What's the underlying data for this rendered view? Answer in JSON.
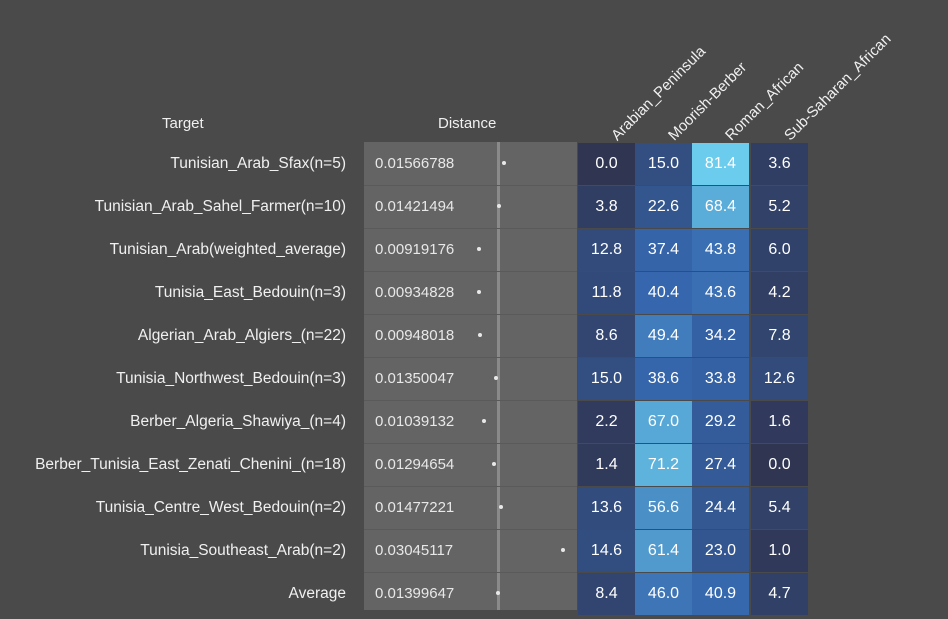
{
  "headers": {
    "target": "Target",
    "distance": "Distance"
  },
  "chart_data": {
    "type": "table",
    "columns": [
      "Arabian_Peninsula",
      "Moorish-Berber",
      "Roman_African",
      "Sub-Saharan_African"
    ],
    "rows": [
      {
        "target": "Tunisian_Arab_Sfax(n=5)",
        "distance_label": "0.01566788",
        "distance": 0.01566788,
        "values": [
          "0.0",
          "15.0",
          "81.4",
          "3.6"
        ]
      },
      {
        "target": "Tunisian_Arab_Sahel_Farmer(n=10)",
        "distance_label": "0.01421494",
        "distance": 0.01421494,
        "values": [
          "3.8",
          "22.6",
          "68.4",
          "5.2"
        ]
      },
      {
        "target": "Tunisian_Arab(weighted_average)",
        "distance_label": "0.00919176",
        "distance": 0.00919176,
        "values": [
          "12.8",
          "37.4",
          "43.8",
          "6.0"
        ]
      },
      {
        "target": "Tunisia_East_Bedouin(n=3)",
        "distance_label": "0.00934828",
        "distance": 0.00934828,
        "values": [
          "11.8",
          "40.4",
          "43.6",
          "4.2"
        ]
      },
      {
        "target": "Algerian_Arab_Algiers_(n=22)",
        "distance_label": "0.00948018",
        "distance": 0.00948018,
        "values": [
          "8.6",
          "49.4",
          "34.2",
          "7.8"
        ]
      },
      {
        "target": "Tunisia_Northwest_Bedouin(n=3)",
        "distance_label": "0.01350047",
        "distance": 0.01350047,
        "values": [
          "15.0",
          "38.6",
          "33.8",
          "12.6"
        ]
      },
      {
        "target": "Berber_Algeria_Shawiya_(n=4)",
        "distance_label": "0.01039132",
        "distance": 0.01039132,
        "values": [
          "2.2",
          "67.0",
          "29.2",
          "1.6"
        ]
      },
      {
        "target": "Berber_Tunisia_East_Zenati_Chenini_(n=18)",
        "distance_label": "0.01294654",
        "distance": 0.01294654,
        "values": [
          "1.4",
          "71.2",
          "27.4",
          "0.0"
        ]
      },
      {
        "target": "Tunisia_Centre_West_Bedouin(n=2)",
        "distance_label": "0.01477221",
        "distance": 0.01477221,
        "values": [
          "13.6",
          "56.6",
          "24.4",
          "5.4"
        ]
      },
      {
        "target": "Tunisia_Southeast_Arab(n=2)",
        "distance_label": "0.03045117",
        "distance": 0.03045117,
        "values": [
          "14.6",
          "61.4",
          "23.0",
          "1.0"
        ]
      },
      {
        "target": "Average",
        "distance_label": "0.01399647",
        "distance": 0.01399647,
        "values": [
          "8.4",
          "46.0",
          "40.9",
          "4.7"
        ]
      }
    ],
    "average_distance": 0.01399647,
    "colors": {
      "background": "#4a4a4a",
      "distance_panel": "#646464",
      "heat_low": "#303552",
      "heat_mid": "#3566ad",
      "heat_high": "#6ccdee"
    }
  }
}
